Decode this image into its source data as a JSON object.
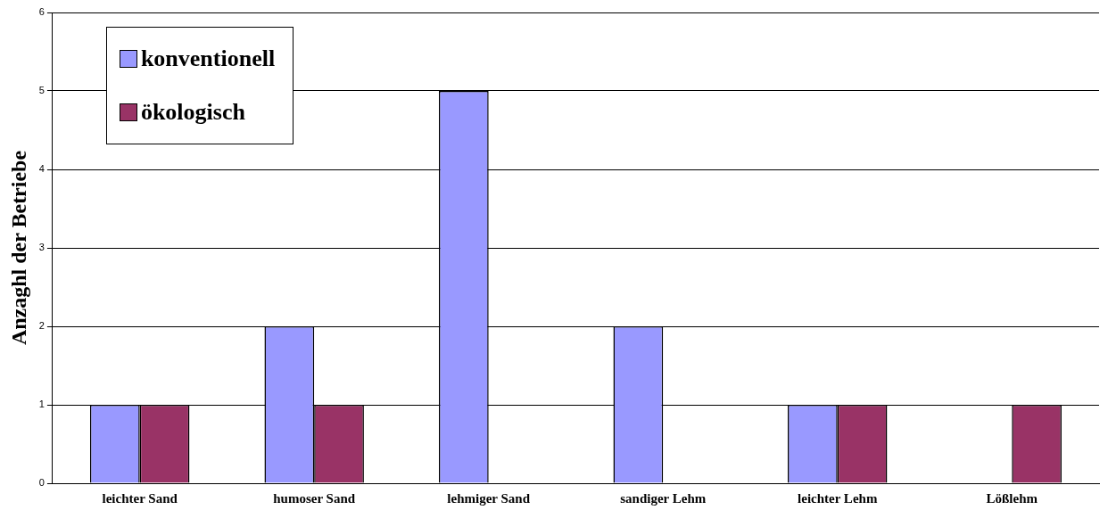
{
  "chart_data": {
    "type": "bar",
    "ylabel": "Anzaghl der Betriebe",
    "categories": [
      "leichter Sand",
      "humoser Sand",
      "lehmiger Sand",
      "sandiger Lehm",
      "leichter Lehm",
      "Lößlehm"
    ],
    "series": [
      {
        "name": "konventionell",
        "color": "#9999ff",
        "values": [
          1,
          2,
          5,
          2,
          1,
          0
        ]
      },
      {
        "name": "ökologisch",
        "color": "#993366",
        "values": [
          1,
          1,
          0,
          0,
          1,
          1
        ]
      }
    ],
    "ylim": [
      0,
      6
    ],
    "yticks": [
      0,
      1,
      2,
      3,
      4,
      5,
      6
    ],
    "grid": "y",
    "legend": "top left"
  }
}
